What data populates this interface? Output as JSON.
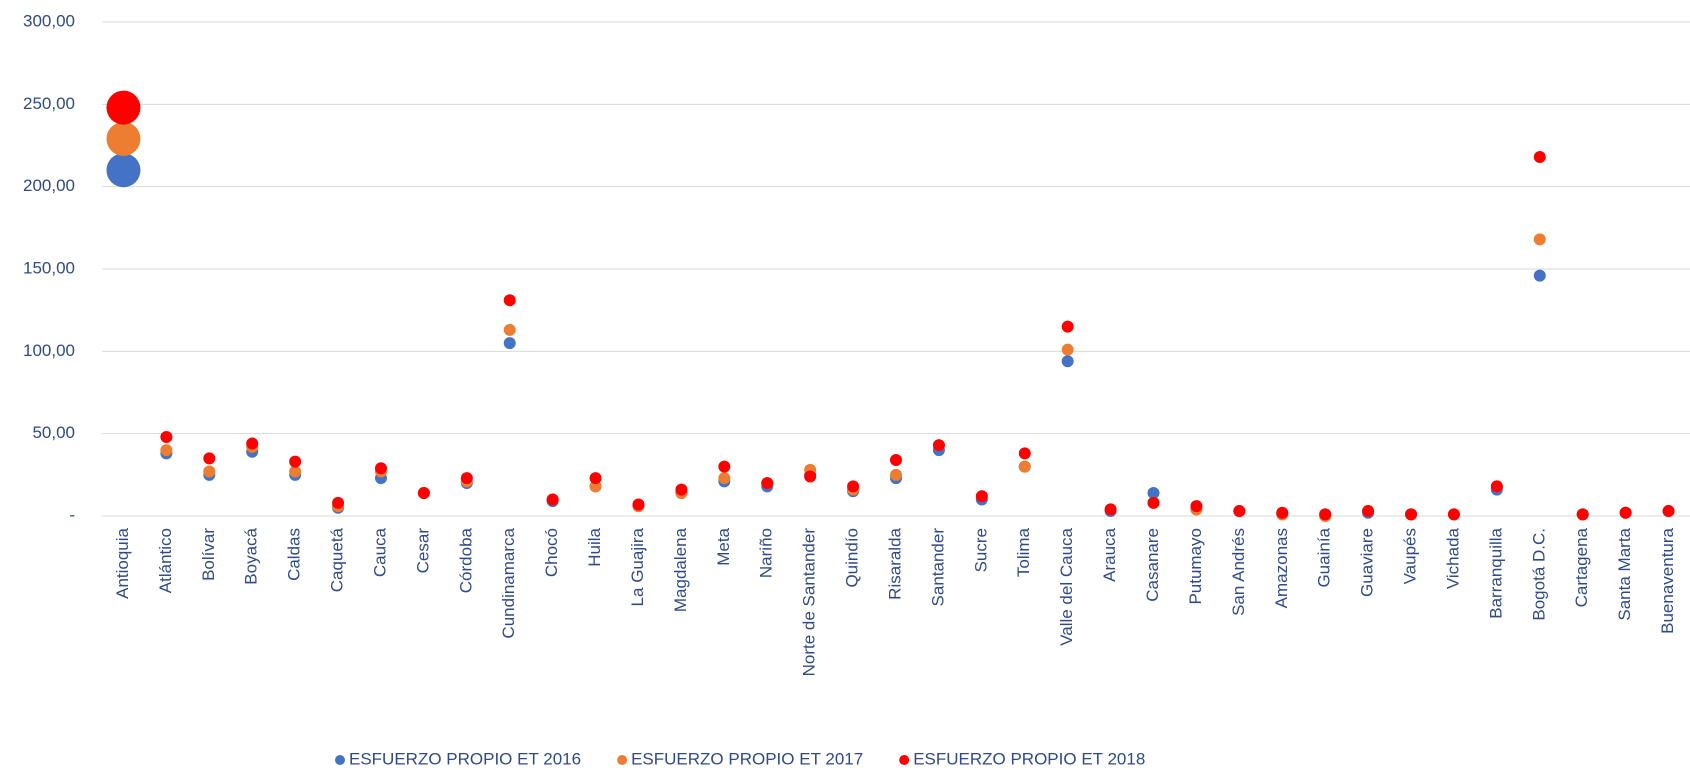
{
  "chart_data": {
    "type": "scatter",
    "categories": [
      "Antioquia",
      "Atlántico",
      "Bolívar",
      "Boyacá",
      "Caldas",
      "Caquetá",
      "Cauca",
      "Cesar",
      "Córdoba",
      "Cundinamarca",
      "Chocó",
      "Huila",
      "La Guajira",
      "Magdalena",
      "Meta",
      "Nariño",
      "Norte de Santander",
      "Quindío",
      "Risaralda",
      "Santander",
      "Sucre",
      "Tolima",
      "Valle del Cauca",
      "Arauca",
      "Casanare",
      "Putumayo",
      "San Andrés",
      "Amazonas",
      "Guainía",
      "Guaviare",
      "Vaupés",
      "Vichada",
      "Barranquilla",
      "Bogotá D.C.",
      "Cartagena",
      "Santa Marta",
      "Buenaventura"
    ],
    "series": [
      {
        "name": "ESFUERZO PROPIO ET 2016",
        "color": "#4472c4",
        "values": [
          210,
          38,
          25,
          39,
          25,
          5,
          23,
          14,
          20,
          105,
          9,
          18,
          6,
          14,
          21,
          18,
          25,
          15,
          23,
          40,
          10,
          30,
          94,
          3,
          14,
          4,
          3,
          1,
          1,
          2,
          1,
          1,
          16,
          146,
          1,
          2,
          3
        ]
      },
      {
        "name": "ESFUERZO PROPIO ET 2017",
        "color": "#ed7d31",
        "values": [
          229,
          40,
          27,
          42,
          27,
          6,
          27,
          14,
          21,
          113,
          10,
          18,
          6,
          14,
          23,
          20,
          28,
          16,
          25,
          43,
          12,
          30,
          101,
          4,
          8,
          4,
          3,
          1,
          0,
          3,
          1,
          1,
          18,
          168,
          1,
          2,
          3
        ]
      },
      {
        "name": "ESFUERZO PROPIO ET 2018",
        "color": "#ff0000",
        "values": [
          248,
          48,
          35,
          44,
          33,
          8,
          29,
          14,
          23,
          131,
          10,
          23,
          7,
          16,
          30,
          20,
          24,
          18,
          34,
          43,
          12,
          38,
          115,
          4,
          8,
          6,
          3,
          2,
          1,
          3,
          1,
          1,
          18,
          218,
          1,
          2,
          3
        ]
      }
    ],
    "ylim": [
      0,
      300
    ],
    "yticks": [
      {
        "value": 0,
        "label": "-"
      },
      {
        "value": 50,
        "label": "50,00"
      },
      {
        "value": 100,
        "label": "100,00"
      },
      {
        "value": 150,
        "label": "150,00"
      },
      {
        "value": 200,
        "label": "200,00"
      },
      {
        "value": 250,
        "label": "250,00"
      },
      {
        "value": 300,
        "label": "300,00"
      }
    ],
    "grid": true,
    "legend": "bottom"
  }
}
